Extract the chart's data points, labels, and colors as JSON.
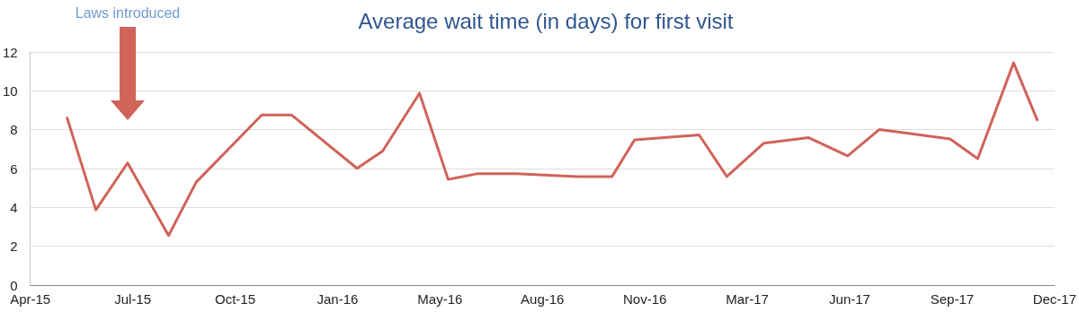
{
  "chart_data": {
    "type": "line",
    "title": "Average wait time (in days) for first visit",
    "x": [
      "2015-05-07",
      "2015-06-04",
      "2015-07-05",
      "2015-08-14",
      "2015-09-10",
      "2015-11-13",
      "2015-12-12",
      "2016-02-14",
      "2016-03-10",
      "2016-04-15",
      "2016-05-13",
      "2016-06-11",
      "2016-07-19",
      "2016-09-16",
      "2016-10-20",
      "2016-11-11",
      "2017-01-13",
      "2017-02-09",
      "2017-03-17",
      "2017-04-30",
      "2017-06-07",
      "2017-07-08",
      "2017-09-15",
      "2017-10-12",
      "2017-11-16",
      "2017-12-09"
    ],
    "series": [
      {
        "color": "#d0635a",
        "values": [
          8.6,
          3.87,
          6.29,
          2.55,
          5.3,
          8.76,
          8.76,
          6.01,
          6.9,
          9.88,
          5.44,
          5.74,
          5.73,
          5.59,
          5.59,
          7.48,
          7.73,
          5.59,
          7.3,
          7.59,
          6.65,
          8.01,
          7.52,
          6.51,
          11.44,
          8.51
        ]
      }
    ],
    "xlim": [
      "2015-04-01",
      "2017-12-26"
    ],
    "xticks": [
      {
        "value": "2015-04-01",
        "label": "Apr-15"
      },
      {
        "value": "2015-07-10",
        "label": "Jul-15"
      },
      {
        "value": "2015-10-18",
        "label": "Oct-15"
      },
      {
        "value": "2016-01-26",
        "label": "Jan-16"
      },
      {
        "value": "2016-05-05",
        "label": "May-16"
      },
      {
        "value": "2016-08-13",
        "label": "Aug-16"
      },
      {
        "value": "2016-11-21",
        "label": "Nov-16"
      },
      {
        "value": "2017-03-01",
        "label": "Mar-17"
      },
      {
        "value": "2017-06-09",
        "label": "Jun-17"
      },
      {
        "value": "2017-09-17",
        "label": "Sep-17"
      },
      {
        "value": "2017-12-26",
        "label": "Dec-17"
      }
    ],
    "ylim": [
      0,
      12
    ],
    "yticks": [
      0,
      2,
      4,
      6,
      8,
      10,
      12
    ],
    "grid": "y",
    "marker": "none",
    "line_style": "solid",
    "annotations": [
      "Laws introduced"
    ]
  }
}
